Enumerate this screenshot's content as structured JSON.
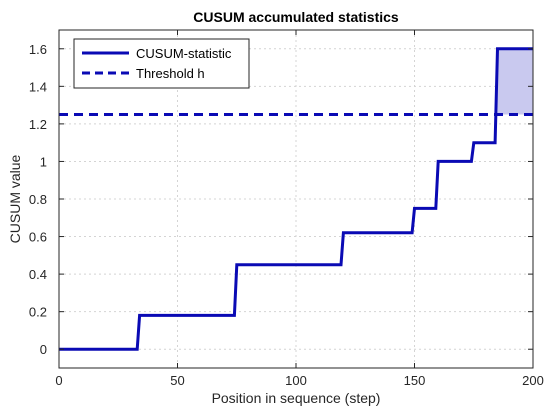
{
  "chart_data": {
    "type": "line",
    "title": "CUSUM accumulated statistics",
    "xlabel": "Position in sequence (step)",
    "ylabel": "CUSUM value",
    "xlim": [
      0,
      200
    ],
    "ylim": [
      -0.1,
      1.7
    ],
    "xticks": [
      0,
      50,
      100,
      150,
      200
    ],
    "yticks": [
      0,
      0.2,
      0.4,
      0.6,
      0.8,
      1,
      1.2,
      1.4,
      1.6
    ],
    "grid": true,
    "legend_position": "top-left",
    "series": [
      {
        "name": "CUSUM-statistic",
        "style": "solid step",
        "color": "#0a0ab4",
        "x": [
          0,
          33,
          34,
          74,
          75,
          119,
          120,
          149,
          150,
          159,
          160,
          174,
          175,
          184,
          185,
          200
        ],
        "y": [
          0,
          0,
          0.18,
          0.18,
          0.45,
          0.45,
          0.62,
          0.62,
          0.75,
          0.75,
          1.0,
          1.0,
          1.1,
          1.1,
          1.6,
          1.6
        ]
      },
      {
        "name": "Threshold h",
        "style": "dashed",
        "color": "#0a0ab4",
        "x": [
          0,
          200
        ],
        "y": [
          1.25,
          1.25
        ]
      }
    ],
    "shaded_region": {
      "x": [
        185,
        200
      ],
      "y": [
        1.25,
        1.6
      ],
      "color": "#c9c9ef"
    }
  }
}
